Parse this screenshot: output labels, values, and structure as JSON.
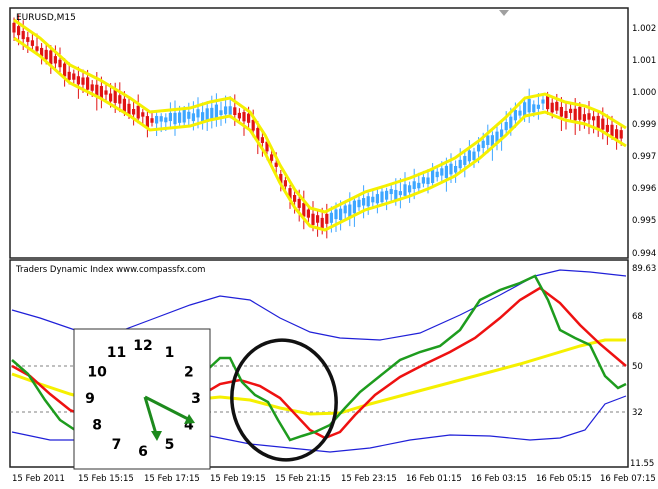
{
  "price_panel": {
    "title": "EURUSD,M15",
    "axis_labels": [
      "1.002",
      "1.001",
      "1.000",
      "0.999",
      "0.997",
      "0.996",
      "0.995",
      "0.994"
    ]
  },
  "indicator_panel": {
    "title": "Traders Dynamic Index   www.compassfx.com",
    "axis_labels": [
      "89.63",
      "68",
      "50",
      "32",
      "11.55"
    ]
  },
  "time_axis": {
    "labels": [
      "15 Feb 2011",
      "15 Feb 15:15",
      "15 Feb 17:15",
      "15 Feb 19:15",
      "15 Feb 21:15",
      "15 Feb 23:15",
      "16 Feb 01:15",
      "16 Feb 03:15",
      "16 Feb 05:15",
      "16 Feb 07:15"
    ]
  },
  "clock": {
    "numbers": [
      "12",
      "1",
      "2",
      "3",
      "4",
      "5",
      "6",
      "7",
      "8",
      "9",
      "10",
      "11"
    ],
    "hand_color": "#1d8a1d"
  },
  "colors": {
    "bear_candle": "#e01414",
    "bull_candle": "#3ea6ff",
    "envelope": "#f5f000",
    "tdi_green": "#1e9c1e",
    "tdi_red": "#ee1111",
    "tdi_yellow": "#f5f000",
    "tdi_blue": "#2020d8",
    "grid": "#808080",
    "marker": "#a0a0a0"
  }
}
